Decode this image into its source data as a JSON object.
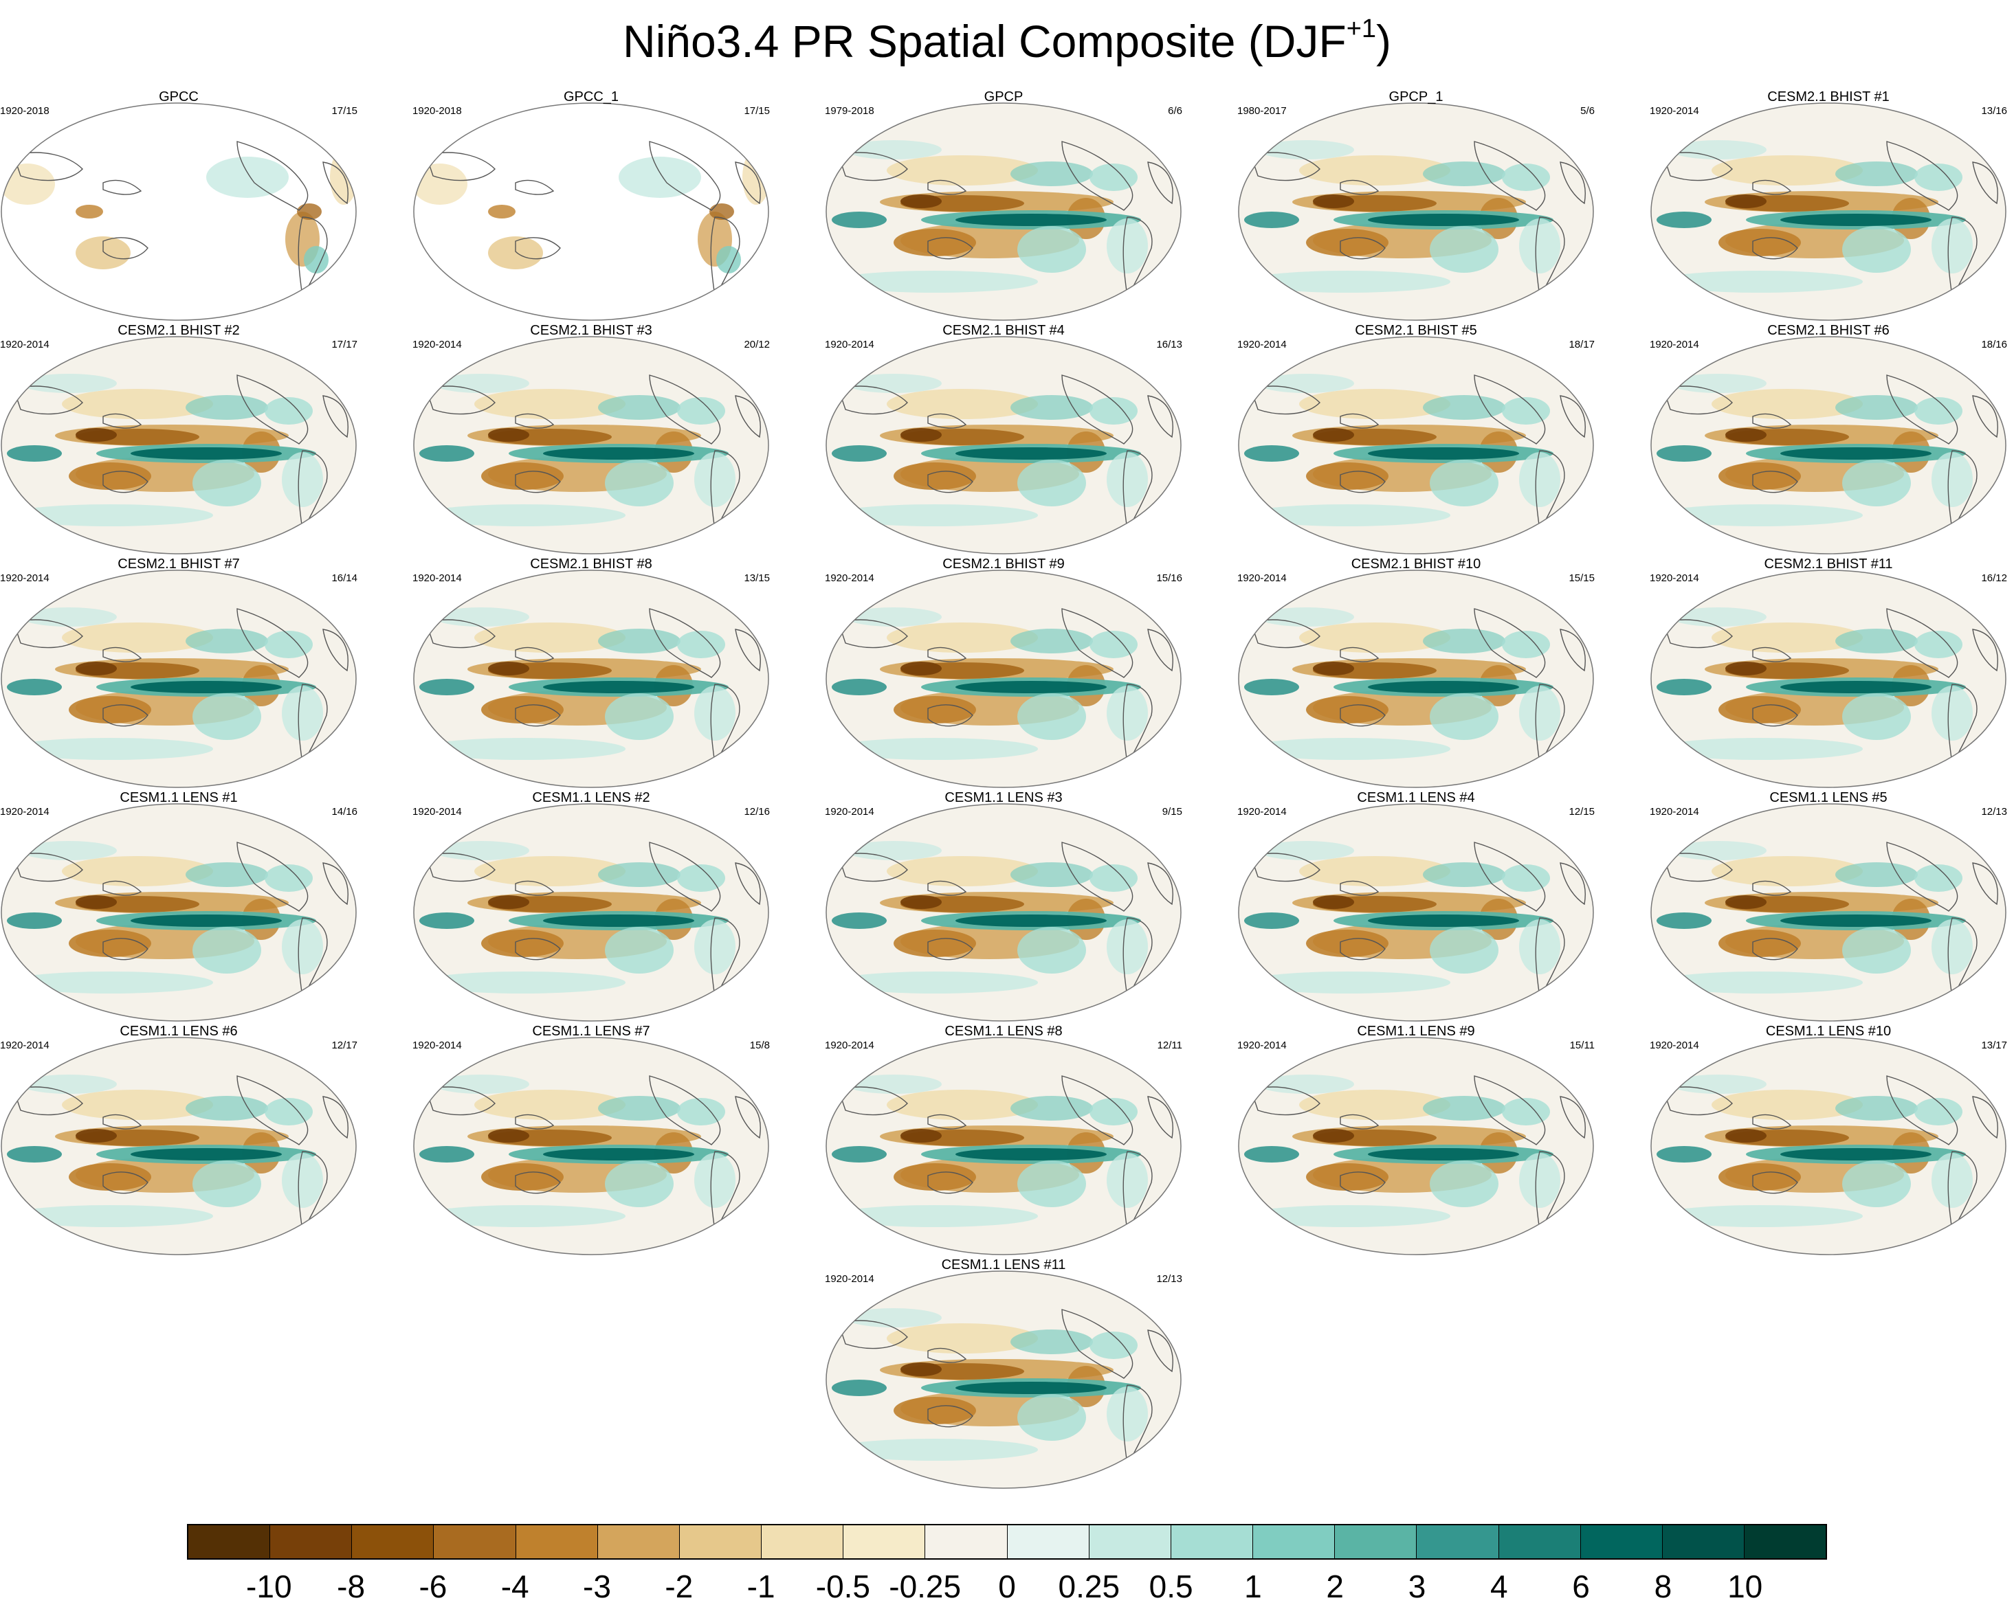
{
  "title": {
    "text": "Niño3.4 PR Spatial Composite (DJF",
    "sup": "+1",
    "close": ")"
  },
  "chart_data": {
    "type": "heatmap",
    "description_units": "precipitation regression/composite, map panels",
    "colorbar": {
      "labels": [
        "-10",
        "-8",
        "-6",
        "-4",
        "-3",
        "-2",
        "-1",
        "-0.5",
        "-0.25",
        "0",
        "0.25",
        "0.5",
        "1",
        "2",
        "3",
        "4",
        "6",
        "8",
        "10"
      ],
      "colors": [
        "#543005",
        "#774009",
        "#8c510a",
        "#a96b20",
        "#bf812d",
        "#d4a55c",
        "#e6c88b",
        "#f1dfb2",
        "#f6ebc9",
        "#f5f2ea",
        "#e6f3f0",
        "#c7eae2",
        "#a6ded4",
        "#80cdc1",
        "#5ab4a5",
        "#35978f",
        "#1b7f76",
        "#01665e",
        "#01524a",
        "#003c30"
      ]
    },
    "panels": [
      {
        "title": "GPCC",
        "years": "1920-2018",
        "count": "17/15",
        "dataset": "obs_land"
      },
      {
        "title": "GPCC_1",
        "years": "1920-2018",
        "count": "17/15",
        "dataset": "obs_land"
      },
      {
        "title": "GPCP",
        "years": "1979-2018",
        "count": "6/6",
        "dataset": "obs"
      },
      {
        "title": "GPCP_1",
        "years": "1980-2017",
        "count": "5/6",
        "dataset": "obs"
      },
      {
        "title": "CESM2.1 BHIST #1",
        "years": "1920-2014",
        "count": "13/16",
        "dataset": "model"
      },
      {
        "title": "CESM2.1 BHIST #2",
        "years": "1920-2014",
        "count": "17/17",
        "dataset": "model"
      },
      {
        "title": "CESM2.1 BHIST #3",
        "years": "1920-2014",
        "count": "20/12",
        "dataset": "model"
      },
      {
        "title": "CESM2.1 BHIST #4",
        "years": "1920-2014",
        "count": "16/13",
        "dataset": "model"
      },
      {
        "title": "CESM2.1 BHIST #5",
        "years": "1920-2014",
        "count": "18/17",
        "dataset": "model"
      },
      {
        "title": "CESM2.1 BHIST #6",
        "years": "1920-2014",
        "count": "18/16",
        "dataset": "model"
      },
      {
        "title": "CESM2.1 BHIST #7",
        "years": "1920-2014",
        "count": "16/14",
        "dataset": "model"
      },
      {
        "title": "CESM2.1 BHIST #8",
        "years": "1920-2014",
        "count": "13/15",
        "dataset": "model"
      },
      {
        "title": "CESM2.1 BHIST #9",
        "years": "1920-2014",
        "count": "15/16",
        "dataset": "model"
      },
      {
        "title": "CESM2.1 BHIST #10",
        "years": "1920-2014",
        "count": "15/15",
        "dataset": "model"
      },
      {
        "title": "CESM2.1 BHIST #11",
        "years": "1920-2014",
        "count": "16/12",
        "dataset": "model"
      },
      {
        "title": "CESM1.1 LENS #1",
        "years": "1920-2014",
        "count": "14/16",
        "dataset": "model"
      },
      {
        "title": "CESM1.1 LENS #2",
        "years": "1920-2014",
        "count": "12/16",
        "dataset": "model"
      },
      {
        "title": "CESM1.1 LENS #3",
        "years": "1920-2014",
        "count": "9/15",
        "dataset": "model"
      },
      {
        "title": "CESM1.1 LENS #4",
        "years": "1920-2014",
        "count": "12/15",
        "dataset": "model"
      },
      {
        "title": "CESM1.1 LENS #5",
        "years": "1920-2014",
        "count": "12/13",
        "dataset": "model"
      },
      {
        "title": "CESM1.1 LENS #6",
        "years": "1920-2014",
        "count": "12/17",
        "dataset": "model"
      },
      {
        "title": "CESM1.1 LENS #7",
        "years": "1920-2014",
        "count": "15/8",
        "dataset": "model"
      },
      {
        "title": "CESM1.1 LENS #8",
        "years": "1920-2014",
        "count": "12/11",
        "dataset": "model"
      },
      {
        "title": "CESM1.1 LENS #9",
        "years": "1920-2014",
        "count": "15/11",
        "dataset": "model"
      },
      {
        "title": "CESM1.1 LENS #10",
        "years": "1920-2014",
        "count": "13/17",
        "dataset": "model"
      },
      {
        "title": "CESM1.1 LENS #11",
        "years": "1920-2014",
        "count": "12/13",
        "dataset": "model"
      }
    ]
  }
}
